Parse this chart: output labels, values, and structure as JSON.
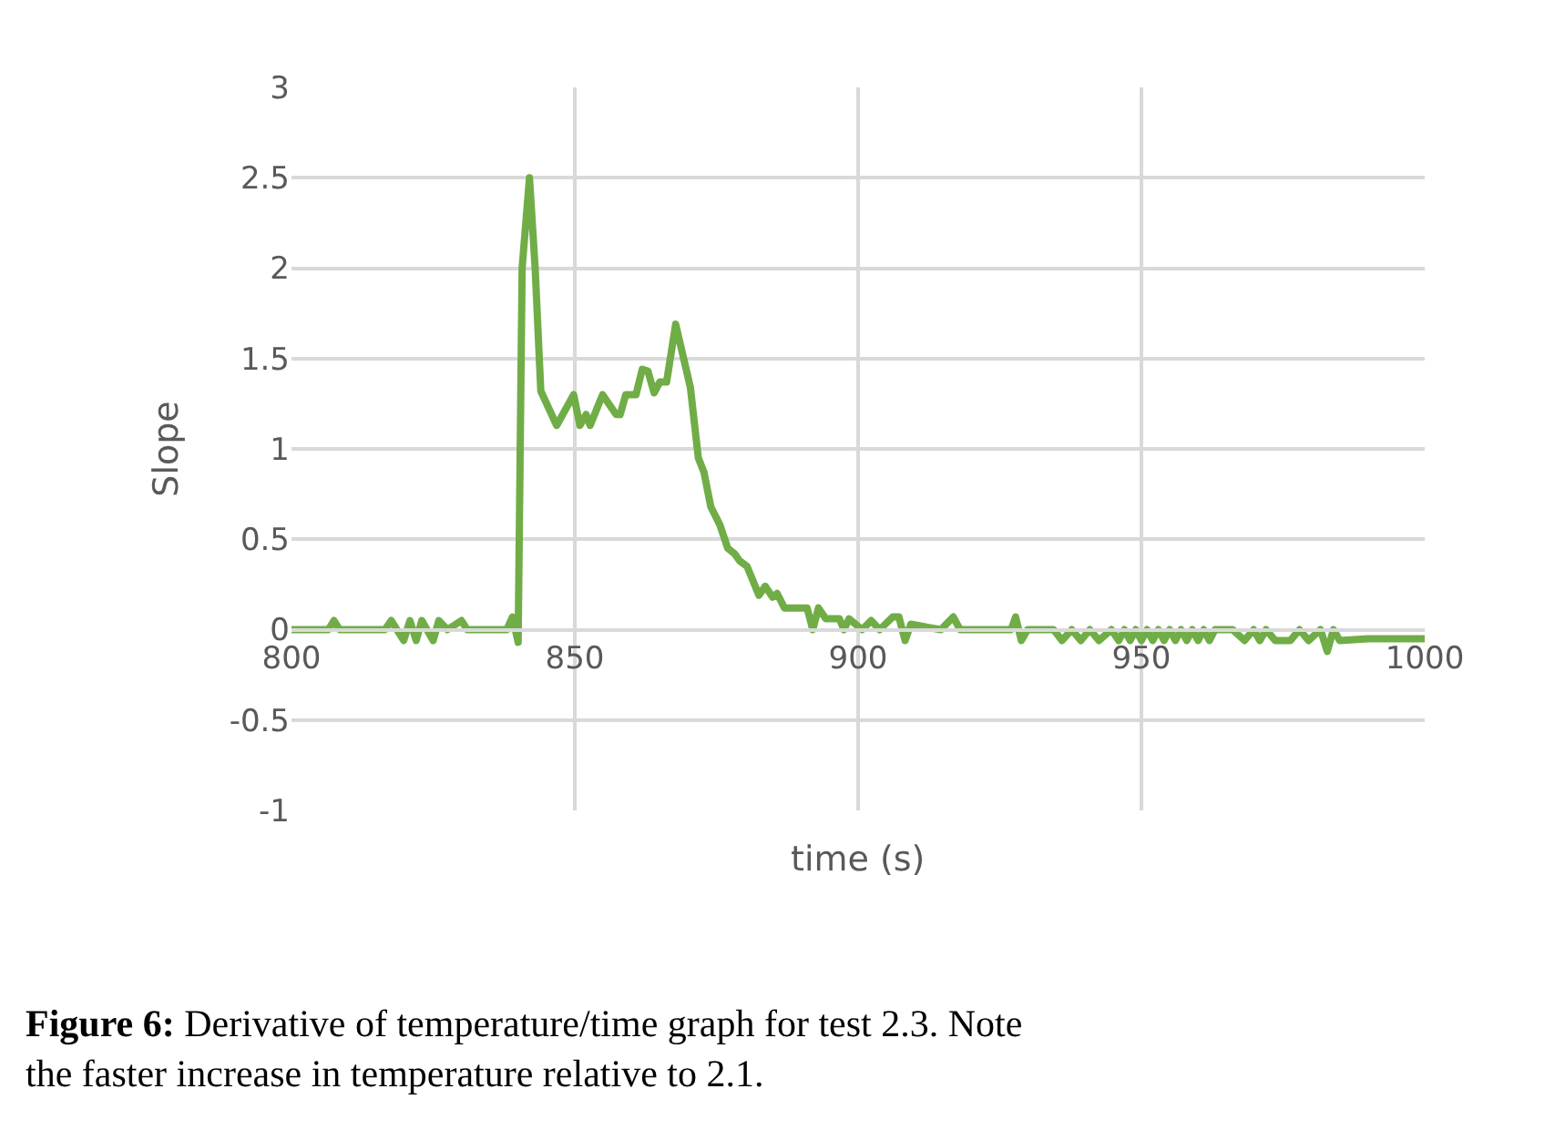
{
  "chart_data": {
    "type": "line",
    "xlabel": "time (s)",
    "ylabel": "Slope",
    "xlim": [
      800,
      1000
    ],
    "xticks": [
      800,
      850,
      900,
      950,
      1000
    ],
    "ylim": [
      -1,
      3
    ],
    "yticks": [
      -1,
      -0.5,
      0,
      0.5,
      1,
      1.5,
      2,
      2.5,
      3
    ],
    "grid": true,
    "marker": "none",
    "line_style": "solid",
    "series": [
      {
        "color": "#70ad47",
        "x": [
          800,
          806.5,
          807.5,
          808.5,
          816.5,
          817.6,
          819.8,
          820.9,
          822,
          823,
          825,
          826,
          827.5,
          830,
          831,
          838,
          839,
          840,
          840.7,
          842,
          843,
          844,
          846.8,
          849.8,
          850.9,
          852,
          852.7,
          854.9,
          857.3,
          858,
          859,
          860.8,
          861.9,
          862.9,
          864,
          865,
          866.2,
          867.8,
          870.4,
          871.8,
          872.8,
          874,
          875.6,
          877,
          878.2,
          879.1,
          880.4,
          882.5,
          883.6,
          884.9,
          885.7,
          887,
          889,
          891,
          892,
          893,
          894.3,
          896.7,
          897.5,
          898.4,
          900.7,
          902.3,
          903.8,
          906.1,
          907.2,
          908.3,
          909.3,
          914.6,
          916.8,
          918,
          927,
          927.8,
          928.8,
          929.9,
          934.5,
          936,
          937.7,
          939.3,
          940.9,
          942.5,
          944.7,
          946,
          947,
          948,
          949,
          950,
          951,
          952,
          953,
          954,
          955,
          956,
          957,
          958,
          959,
          960,
          961,
          962,
          963,
          966.1,
          968.2,
          969.8,
          970.9,
          972,
          973.6,
          976.3,
          977.9,
          979.5,
          981.6,
          982.8,
          983.9,
          985,
          990,
          995,
          1000
        ],
        "values": [
          0,
          0,
          0.05,
          0,
          0,
          0.05,
          -0.06,
          0.05,
          -0.06,
          0.05,
          -0.06,
          0.05,
          0,
          0.05,
          0,
          0,
          0.07,
          -0.07,
          2.0,
          2.5,
          2.0,
          1.32,
          1.13,
          1.3,
          1.13,
          1.19,
          1.13,
          1.3,
          1.19,
          1.19,
          1.3,
          1.3,
          1.44,
          1.43,
          1.31,
          1.37,
          1.37,
          1.69,
          1.34,
          0.95,
          0.87,
          0.68,
          0.58,
          0.45,
          0.42,
          0.38,
          0.35,
          0.19,
          0.24,
          0.18,
          0.2,
          0.12,
          0.12,
          0.12,
          0,
          0.12,
          0.06,
          0.06,
          0,
          0.06,
          0,
          0.05,
          0,
          0.07,
          0.07,
          -0.06,
          0.03,
          0,
          0.07,
          0,
          0,
          0.07,
          -0.06,
          0,
          0,
          -0.06,
          0,
          -0.06,
          0,
          -0.06,
          0,
          -0.06,
          0,
          -0.06,
          0,
          -0.06,
          0,
          -0.06,
          0,
          -0.06,
          0,
          -0.06,
          0,
          -0.06,
          0,
          -0.06,
          0,
          -0.06,
          0,
          0,
          -0.06,
          0,
          -0.06,
          0,
          -0.06,
          -0.06,
          0,
          -0.06,
          0,
          -0.12,
          0,
          -0.06,
          -0.05,
          -0.05,
          -0.05
        ]
      }
    ],
    "annotations": [
      "Figure 6: Derivative of temperature/time graph for test 2.3. Note the faster increase in temperature relative to 2.1."
    ]
  }
}
